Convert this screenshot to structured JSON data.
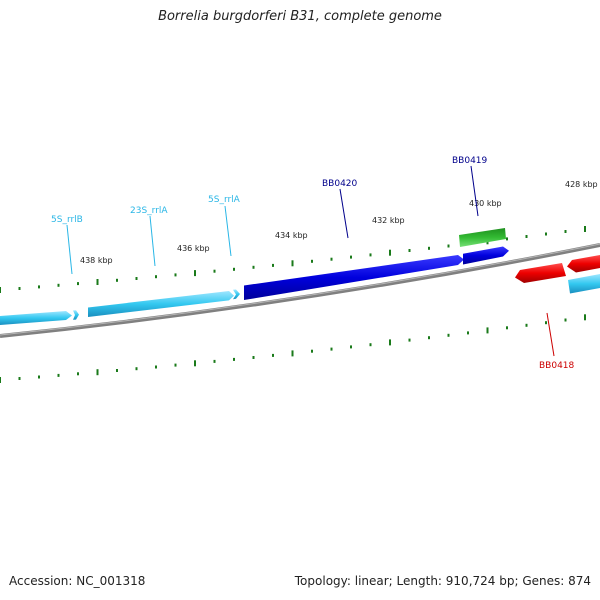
{
  "title": "Borrelia burgdorferi B31, complete genome",
  "footer": {
    "accession": "Accession: NC_001318",
    "summary": "Topology: linear; Length: 910,724 bp; Genes: 874"
  },
  "colors": {
    "backbone": "#808080",
    "ticks": "#1a7a1a",
    "rna_gene": "#33c8f0",
    "rna_label": "#29b6e6",
    "cds_blue": "#0000dd",
    "cds_green": "#33bb33",
    "cds_red": "#ee0000",
    "blue_label": "#00008b",
    "red_label": "#cc0000"
  },
  "scale_labels": [
    "438 kbp",
    "436 kbp",
    "434 kbp",
    "432 kbp",
    "430 kbp",
    "428 kbp"
  ],
  "features": [
    {
      "label": "5S_rrlB",
      "type": "rRNA",
      "color": "rna_gene",
      "strand": "+"
    },
    {
      "label": "23S_rrlA",
      "type": "rRNA",
      "color": "rna_gene",
      "strand": "+"
    },
    {
      "label": "5S_rrlA",
      "type": "rRNA",
      "color": "rna_gene",
      "strand": "+"
    },
    {
      "label": "BB0420",
      "type": "CDS",
      "color": "cds_blue",
      "strand": "+"
    },
    {
      "label": "BB0419",
      "type": "CDS",
      "color": "cds_green",
      "strand": "+"
    },
    {
      "label": "BB0418",
      "type": "CDS",
      "color": "cds_red",
      "strand": "-"
    }
  ]
}
